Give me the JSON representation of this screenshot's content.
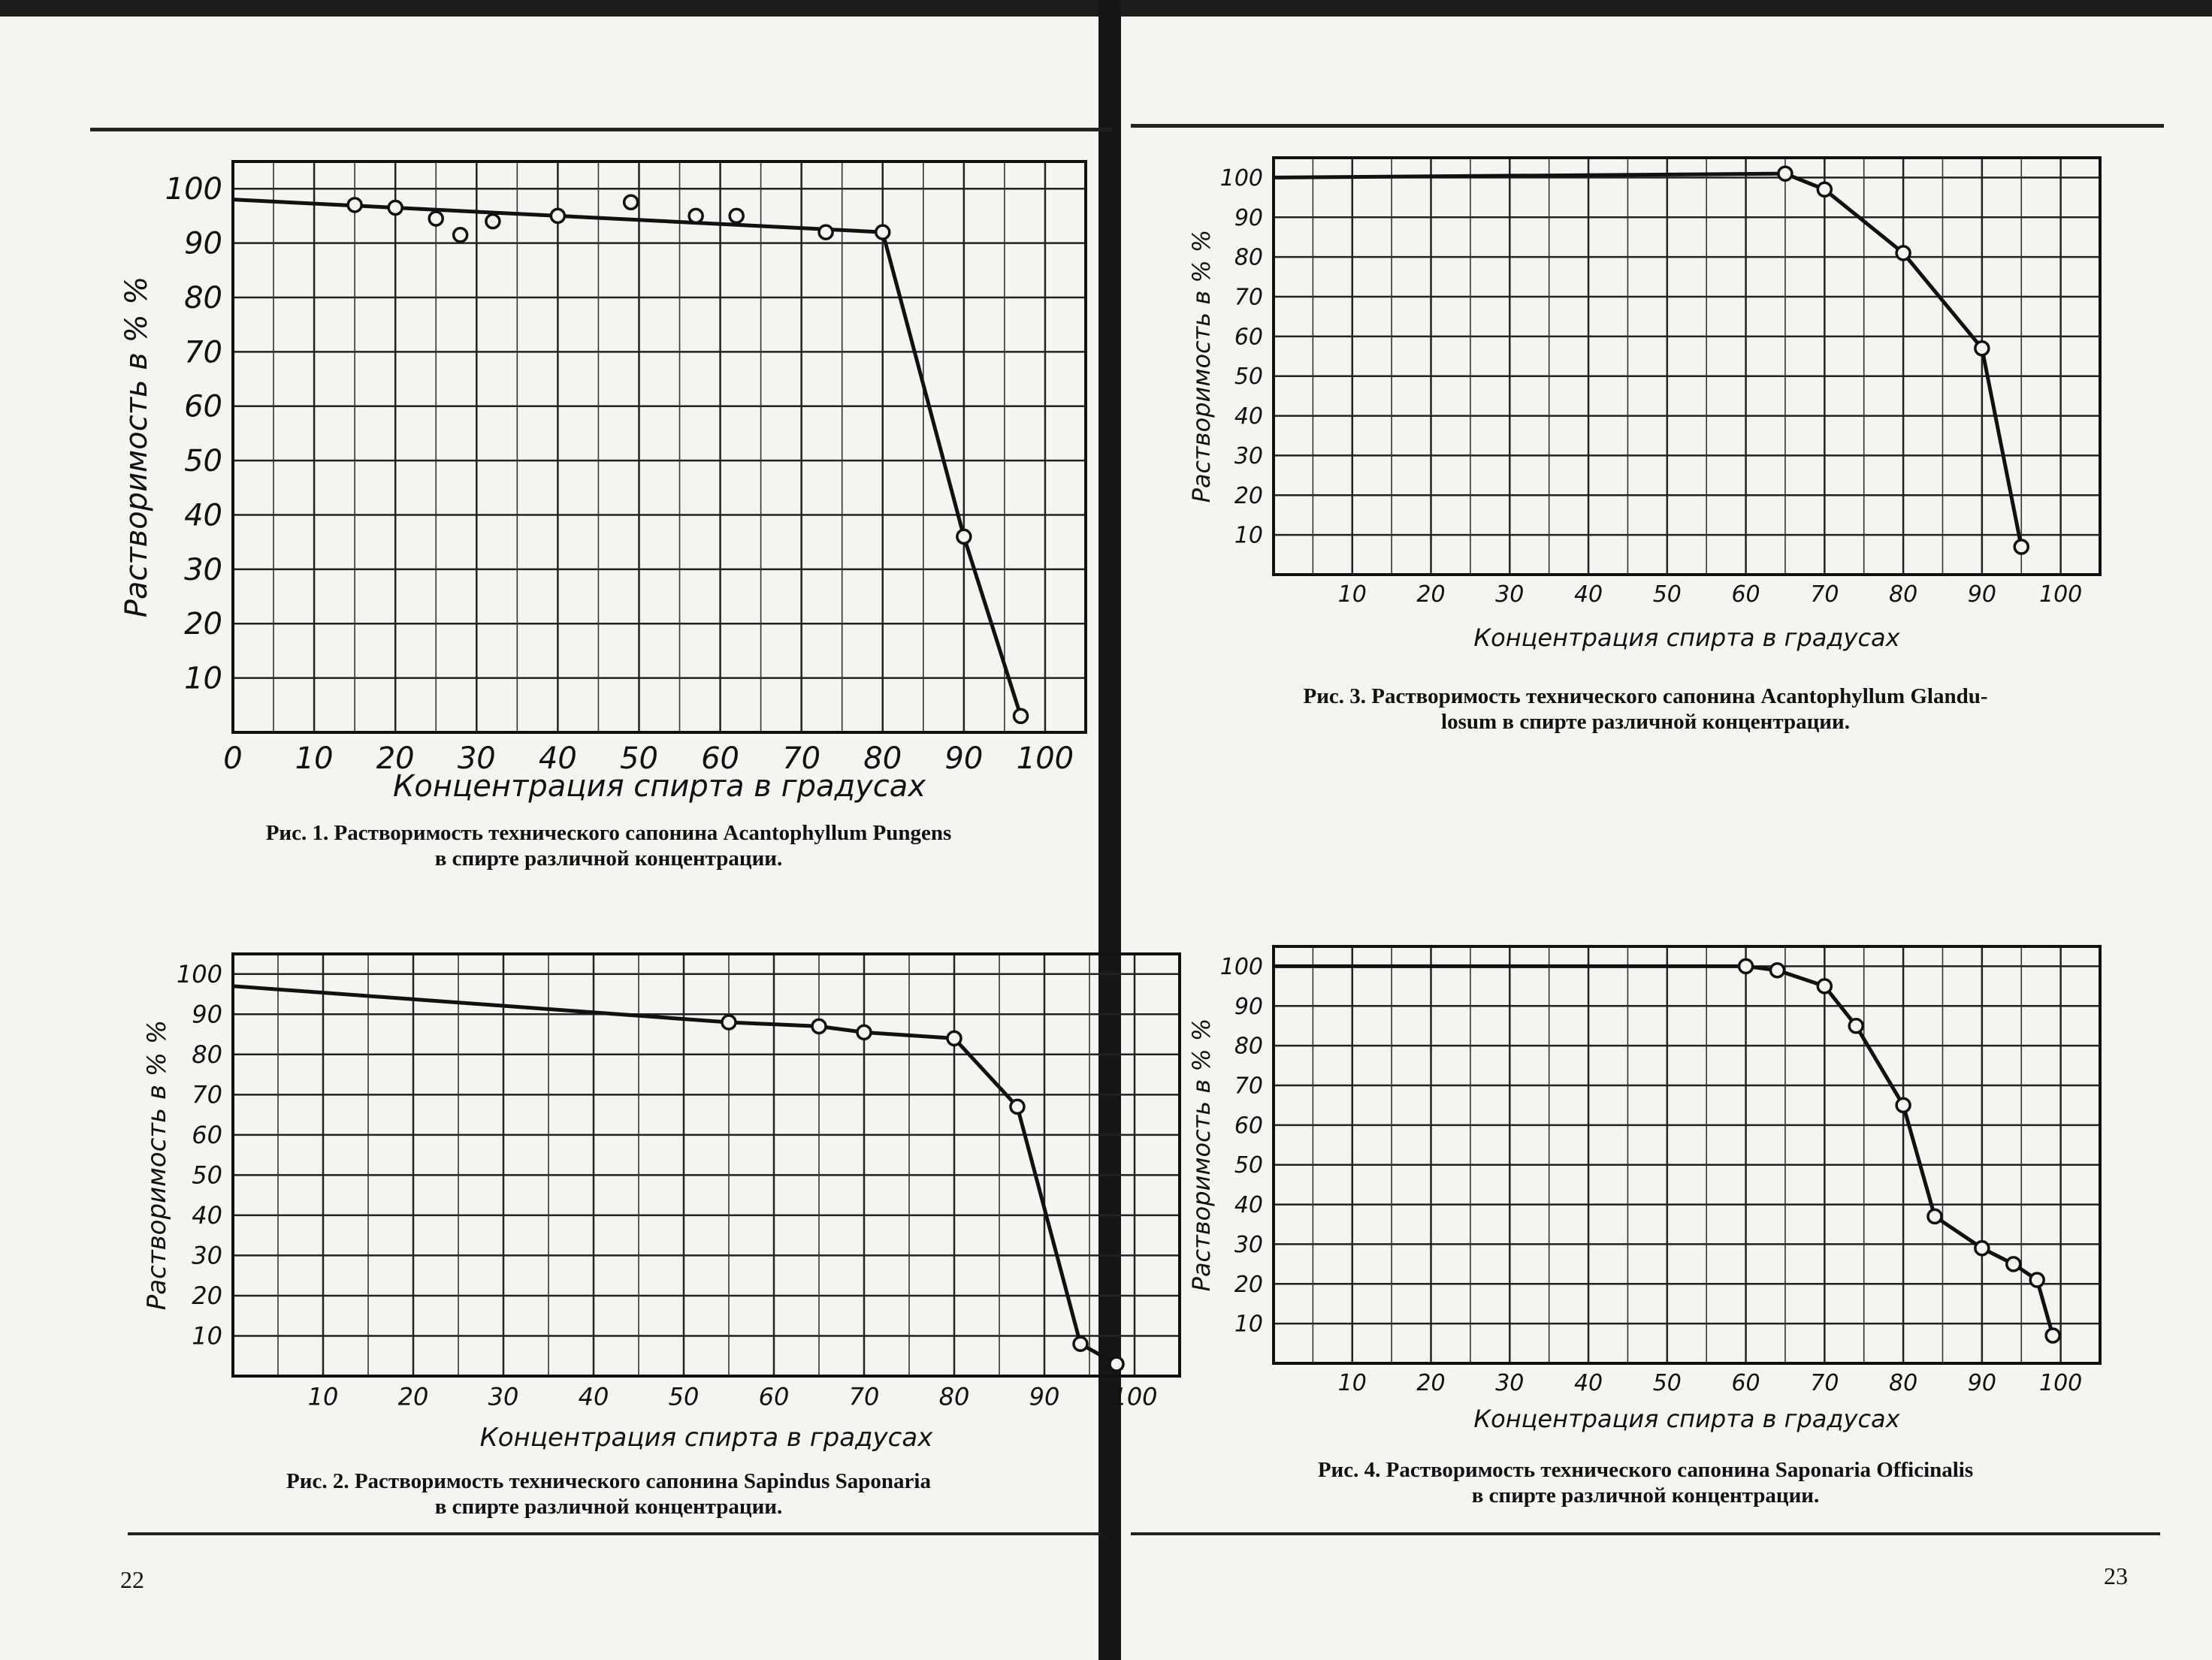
{
  "pages": {
    "left_number": "22",
    "right_number": "23"
  },
  "chart_data": [
    {
      "type": "line",
      "title": "",
      "xlabel": "Концентрация спирта в градусах",
      "ylabel": "Растворимость в % %",
      "xlim": [
        0,
        105
      ],
      "ylim": [
        0,
        105
      ],
      "x_ticks": [
        "0",
        "10",
        "20",
        "30",
        "40",
        "50",
        "60",
        "70",
        "80",
        "90",
        "100"
      ],
      "y_ticks": [
        "100",
        "90",
        "80",
        "70",
        "60",
        "50",
        "40",
        "30",
        "20",
        "10"
      ],
      "line": {
        "x": [
          0,
          80,
          90,
          97
        ],
        "y": [
          98,
          92,
          36,
          3
        ]
      },
      "points": {
        "x": [
          15,
          20,
          25,
          28,
          32,
          40,
          49,
          57,
          62,
          73,
          80,
          90,
          97
        ],
        "y": [
          97,
          96.5,
          94.5,
          91.5,
          94,
          95,
          97.5,
          95,
          95,
          92,
          92,
          36,
          3
        ]
      },
      "caption_lines": [
        "Рис. 1. Растворимость технического сапонина Acantophyllum Pungens",
        "в спирте различной концентрации."
      ]
    },
    {
      "type": "line",
      "title": "",
      "xlabel": "Концентрация спирта в градусах",
      "ylabel": "Растворимость в % %",
      "xlim": [
        0,
        105
      ],
      "ylim": [
        0,
        105
      ],
      "x_ticks": [
        "10",
        "20",
        "30",
        "40",
        "50",
        "60",
        "70",
        "80",
        "90",
        "100"
      ],
      "y_ticks": [
        "100",
        "90",
        "80",
        "70",
        "60",
        "50",
        "40",
        "30",
        "20",
        "10"
      ],
      "line": {
        "x": [
          0,
          55,
          65,
          70,
          80,
          87,
          94,
          98
        ],
        "y": [
          97,
          88,
          87,
          85.5,
          84,
          67,
          8,
          3
        ]
      },
      "points": {
        "x": [
          55,
          65,
          70,
          80,
          87,
          94,
          98
        ],
        "y": [
          88,
          87,
          85.5,
          84,
          67,
          8,
          3
        ]
      },
      "caption_lines": [
        "Рис. 2. Растворимость технического сапонина Sapindus Saponaria",
        "в спирте различной концентрации."
      ]
    },
    {
      "type": "line",
      "title": "",
      "xlabel": "Концентрация спирта в градусах",
      "ylabel": "Растворимость в % %",
      "xlim": [
        0,
        105
      ],
      "ylim": [
        0,
        105
      ],
      "x_ticks": [
        "10",
        "20",
        "30",
        "40",
        "50",
        "60",
        "70",
        "80",
        "90",
        "100"
      ],
      "y_ticks": [
        "100",
        "90",
        "80",
        "70",
        "60",
        "50",
        "40",
        "30",
        "20",
        "10"
      ],
      "line": {
        "x": [
          0,
          65,
          70,
          80,
          90,
          95
        ],
        "y": [
          100,
          101,
          97,
          81,
          57,
          7
        ]
      },
      "points": {
        "x": [
          65,
          70,
          80,
          90,
          95
        ],
        "y": [
          101,
          97,
          81,
          57,
          7
        ]
      },
      "caption_lines": [
        "Рис. 3. Растворимость технического сапонина Acantophyllum Glandu-",
        "losum в спирте различной концентрации."
      ]
    },
    {
      "type": "line",
      "title": "",
      "xlabel": "Концентрация спирта в градусах",
      "ylabel": "Растворимость в % %",
      "xlim": [
        0,
        105
      ],
      "ylim": [
        0,
        105
      ],
      "x_ticks": [
        "10",
        "20",
        "30",
        "40",
        "50",
        "60",
        "70",
        "80",
        "90",
        "100"
      ],
      "y_ticks": [
        "100",
        "90",
        "80",
        "70",
        "60",
        "50",
        "40",
        "30",
        "20",
        "10"
      ],
      "line": {
        "x": [
          0,
          60,
          64,
          70,
          74,
          80,
          84,
          90,
          94,
          97,
          99
        ],
        "y": [
          100,
          100,
          99,
          95,
          85,
          65,
          37,
          29,
          25,
          21,
          7
        ]
      },
      "points": {
        "x": [
          60,
          64,
          70,
          74,
          80,
          84,
          90,
          94,
          97,
          99
        ],
        "y": [
          100,
          99,
          95,
          85,
          65,
          37,
          29,
          25,
          21,
          7
        ]
      },
      "caption_lines": [
        "Рис. 4. Растворимость технического сапонина Saponaria Officinalis",
        "в спирте различной концентрации."
      ]
    }
  ]
}
